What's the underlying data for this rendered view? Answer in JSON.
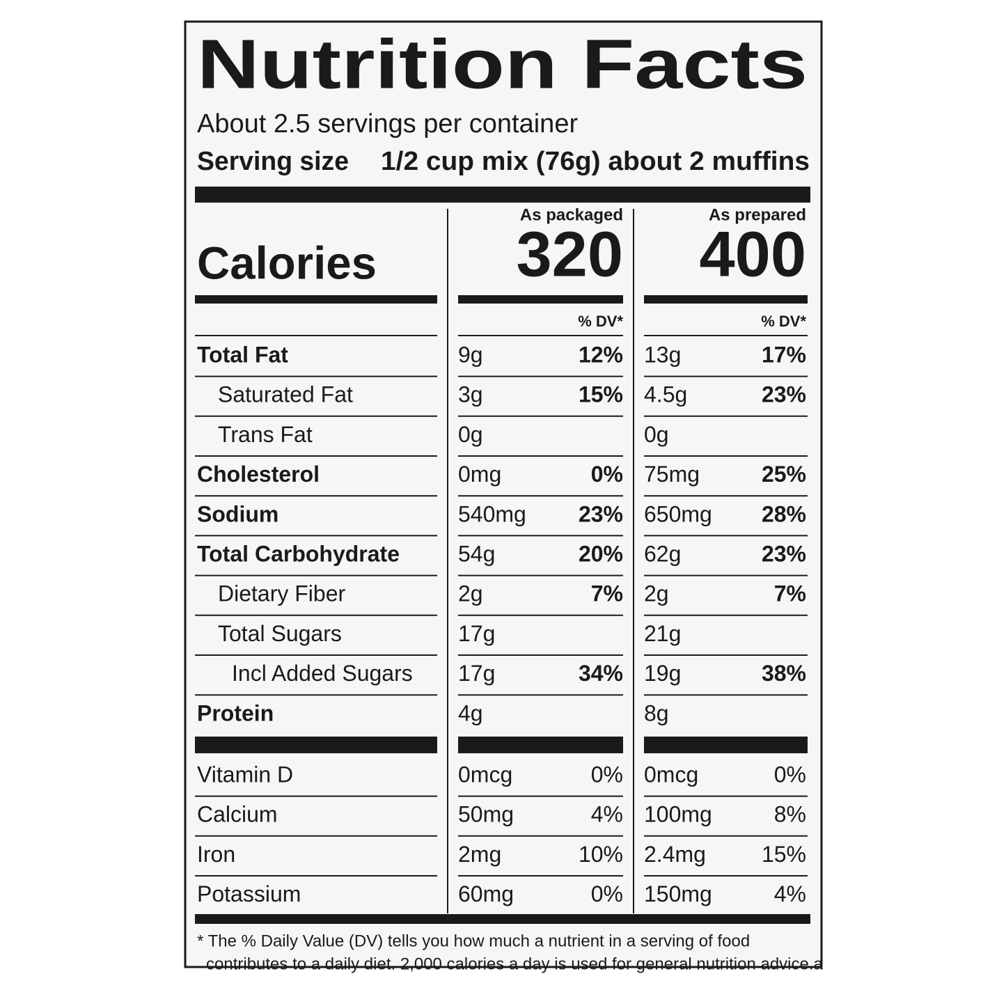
{
  "title": "Nutrition Facts",
  "servings": "About 2.5 servings per container",
  "serving_size": {
    "label": "Serving size",
    "value": "1/2 cup mix (76g) about 2 muffins"
  },
  "columns": [
    "As packaged",
    "As prepared"
  ],
  "calories": {
    "label": "Calories",
    "values": [
      "320",
      "400"
    ]
  },
  "dv_header": "% DV*",
  "nutrients": [
    {
      "name": "Total Fat",
      "level": 0,
      "values": [
        [
          "9g",
          "12%"
        ],
        [
          "13g",
          "17%"
        ]
      ]
    },
    {
      "name": "Saturated Fat",
      "level": 1,
      "values": [
        [
          "3g",
          "15%"
        ],
        [
          "4.5g",
          "23%"
        ]
      ]
    },
    {
      "name": "Trans Fat",
      "level": 1,
      "values": [
        [
          "0g",
          null
        ],
        [
          "0g",
          null
        ]
      ]
    },
    {
      "name": "Cholesterol",
      "level": 0,
      "values": [
        [
          "0mg",
          "0%"
        ],
        [
          "75mg",
          "25%"
        ]
      ]
    },
    {
      "name": "Sodium",
      "level": 0,
      "values": [
        [
          "540mg",
          "23%"
        ],
        [
          "650mg",
          "28%"
        ]
      ]
    },
    {
      "name": "Total Carbohydrate",
      "level": 0,
      "values": [
        [
          "54g",
          "20%"
        ],
        [
          "62g",
          "23%"
        ]
      ]
    },
    {
      "name": "Dietary Fiber",
      "level": 1,
      "values": [
        [
          "2g",
          "7%"
        ],
        [
          "2g",
          "7%"
        ]
      ]
    },
    {
      "name": "Total Sugars",
      "level": 1,
      "values": [
        [
          "17g",
          null
        ],
        [
          "21g",
          null
        ]
      ]
    },
    {
      "name": "Incl Added Sugars",
      "level": 2,
      "values": [
        [
          "17g",
          "34%"
        ],
        [
          "19g",
          "38%"
        ]
      ]
    },
    {
      "name": "Protein",
      "level": 0,
      "values": [
        [
          "4g",
          null
        ],
        [
          "8g",
          null
        ]
      ]
    }
  ],
  "vitamins": [
    {
      "name": "Vitamin D",
      "values": [
        [
          "0mcg",
          "0%"
        ],
        [
          "0mcg",
          "0%"
        ]
      ]
    },
    {
      "name": "Calcium",
      "values": [
        [
          "50mg",
          "4%"
        ],
        [
          "100mg",
          "8%"
        ]
      ]
    },
    {
      "name": "Iron",
      "values": [
        [
          "2mg",
          "10%"
        ],
        [
          "2.4mg",
          "15%"
        ]
      ]
    },
    {
      "name": "Potassium",
      "values": [
        [
          "60mg",
          "0%"
        ],
        [
          "150mg",
          "4%"
        ]
      ]
    }
  ],
  "footnote": [
    "* The % Daily Value (DV) tells you how much a nutrient in a serving of food",
    "contributes to a daily diet. 2,000 calories a day is used for general nutrition advice.a"
  ]
}
